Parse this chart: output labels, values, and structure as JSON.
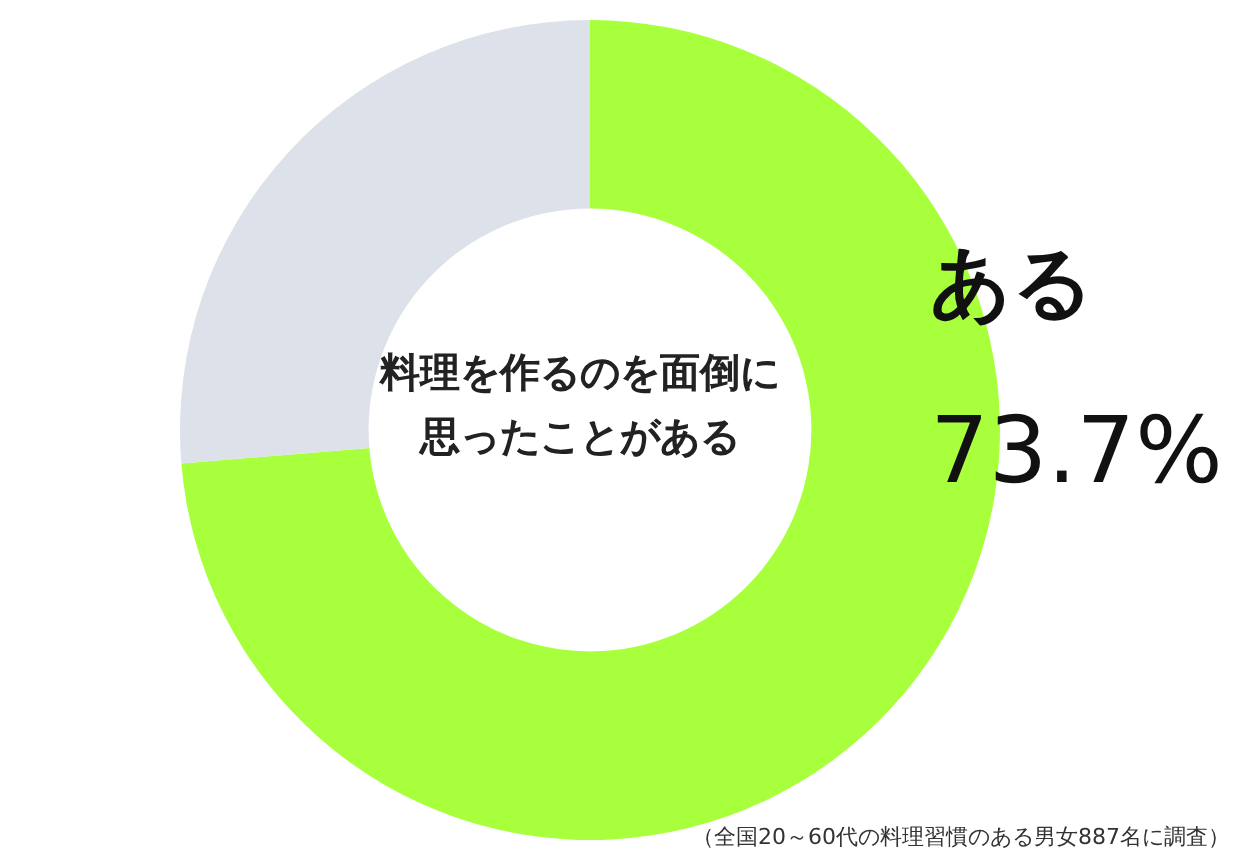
{
  "chart_data": {
    "type": "donut",
    "title": "料理を作るのを面倒に思ったことがある",
    "categories": [
      "ある",
      null
    ],
    "values": [
      73.7,
      26.3
    ],
    "colors": [
      "#a8ff3c",
      "#dde1ea"
    ],
    "value_labels": [
      "73.7%",
      null
    ],
    "annotations": [
      "（全国20～60代の料理習慣のある男女887名に調査）"
    ]
  }
}
